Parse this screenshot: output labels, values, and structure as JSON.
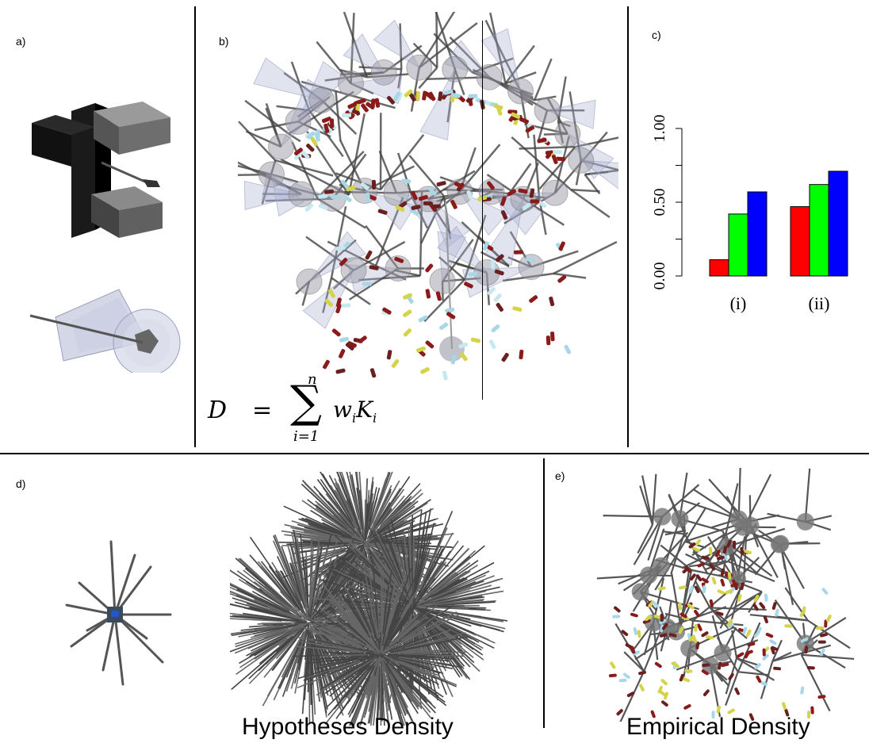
{
  "panels": {
    "a": {
      "label": "a)"
    },
    "b": {
      "label": "b)",
      "equation": {
        "lhs": "D",
        "eq": "=",
        "sum_top": "n",
        "sum_bottom": "i=1",
        "term": "w_i K_i"
      }
    },
    "c": {
      "label": "c)"
    },
    "d": {
      "label": "d)",
      "caption": "Hypotheses Density"
    },
    "e": {
      "label": "e)",
      "caption": "Empirical Density"
    }
  },
  "colors": {
    "red": "#ff0000",
    "green": "#00ff00",
    "blue": "#0000ff"
  },
  "chart_data": {
    "type": "bar",
    "categories": [
      "(i)",
      "(ii)"
    ],
    "series": [
      {
        "color": "#ff0000",
        "values": [
          0.11,
          0.47
        ]
      },
      {
        "color": "#00ff00",
        "values": [
          0.42,
          0.62
        ]
      },
      {
        "color": "#0000ff",
        "values": [
          0.57,
          0.71
        ]
      }
    ],
    "ylim": [
      0,
      1
    ],
    "yticks": [
      "0.00",
      "0.50",
      "1.00"
    ],
    "title": "",
    "xlabel": "",
    "ylabel": ""
  }
}
